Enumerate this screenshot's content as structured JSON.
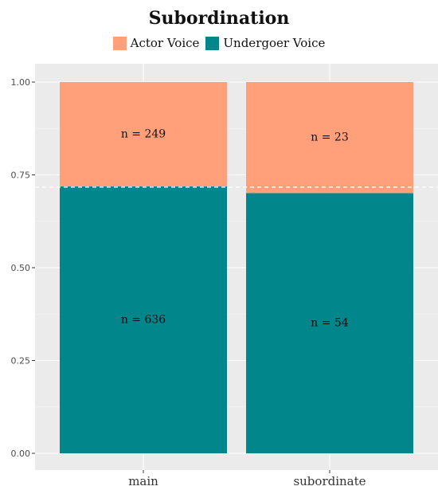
{
  "chart_data": {
    "type": "bar",
    "stacked": true,
    "title": "Subordination",
    "xlabel": "",
    "ylabel": "",
    "categories": [
      "main",
      "subordinate"
    ],
    "ylim": [
      0,
      1
    ],
    "yticks": [
      "0.00",
      "0.25",
      "0.50",
      "0.75",
      "1.00"
    ],
    "series": [
      {
        "name": "Undergoer Voice",
        "color": "#00868B",
        "values": [
          0.719,
          0.701
        ],
        "labels": [
          "n = 636",
          "n = 54"
        ]
      },
      {
        "name": "Actor Voice",
        "color": "#FFA07A",
        "values": [
          0.281,
          0.299
        ],
        "labels": [
          "n = 249",
          "n = 23"
        ]
      }
    ],
    "reference_line": {
      "y": 0.717,
      "style": "dashed",
      "color": "#ffffff"
    },
    "legend_position": "top",
    "grid": true
  }
}
